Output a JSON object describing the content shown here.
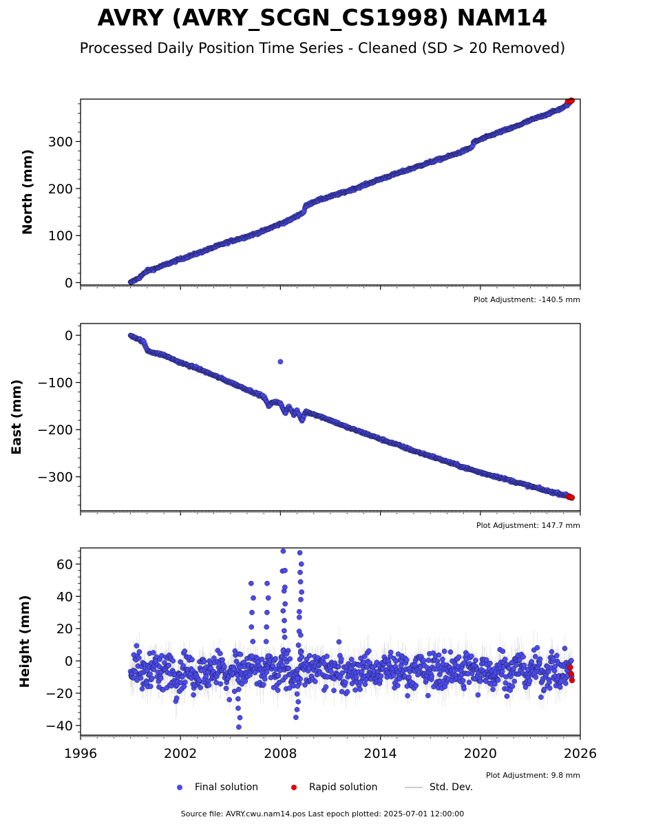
{
  "title": "AVRY (AVRY_SCGN_CS1998) NAM14",
  "subtitle": "Processed Daily Position Time Series - Cleaned (SD > 20 Removed)",
  "legend": {
    "final": "Final solution",
    "rapid": "Rapid solution",
    "std": "Std. Dev."
  },
  "footer": "Source file: AVRY.cwu.nam14.pos  Last epoch plotted: 2025-07-01 12:00:00",
  "colors": {
    "final": "#4b4bf0",
    "rapid": "#e00000",
    "std": "#cccccc",
    "edge": "#1a1a40"
  },
  "chart_data": [
    {
      "type": "scatter",
      "ylabel": "North (mm)",
      "adjustment": "Plot Adjustment: -140.5 mm",
      "xlim": [
        1996,
        2026
      ],
      "ylim": [
        -5,
        390
      ],
      "yticks": [
        0,
        100,
        200,
        300
      ],
      "ytick_labels": [
        "0",
        "100",
        "200",
        "300"
      ],
      "x": [
        1999.0,
        1999.5,
        2000.0,
        2000.5,
        2001.0,
        2002.0,
        2003.0,
        2004.0,
        2005.0,
        2006.0,
        2007.0,
        2007.5,
        2008.0,
        2008.5,
        2009.0,
        2009.4,
        2009.5,
        2010.0,
        2011.0,
        2012.0,
        2013.0,
        2014.0,
        2015.0,
        2016.0,
        2017.0,
        2018.0,
        2019.0,
        2019.5,
        2019.6,
        2020.0,
        2021.0,
        2022.0,
        2023.0,
        2024.0,
        2025.0,
        2025.5
      ],
      "y": [
        0,
        10,
        25,
        30,
        37,
        50,
        62,
        75,
        88,
        98,
        110,
        118,
        125,
        132,
        142,
        150,
        162,
        172,
        183,
        194,
        207,
        220,
        232,
        244,
        256,
        267,
        280,
        288,
        298,
        304,
        318,
        330,
        345,
        358,
        372,
        387
      ],
      "rapid_x": [
        2025.25,
        2025.4,
        2025.5
      ],
      "rapid_y": [
        385,
        386,
        387
      ]
    },
    {
      "type": "scatter",
      "ylabel": "East (mm)",
      "adjustment": "Plot Adjustment: 147.7 mm",
      "xlim": [
        1996,
        2026
      ],
      "ylim": [
        -372,
        25
      ],
      "yticks": [
        0,
        -100,
        -200,
        -300
      ],
      "ytick_labels": [
        "0",
        "−100",
        "−200",
        "−300"
      ],
      "x": [
        1999.0,
        1999.3,
        1999.6,
        1999.8,
        2000.0,
        2000.5,
        2001.0,
        2002.0,
        2003.0,
        2004.0,
        2005.0,
        2006.0,
        2007.0,
        2007.3,
        2007.6,
        2008.0,
        2008.3,
        2008.5,
        2008.8,
        2009.0,
        2009.3,
        2009.5,
        2010.0,
        2011.0,
        2012.0,
        2013.0,
        2014.0,
        2015.0,
        2016.0,
        2017.0,
        2018.0,
        2019.0,
        2020.0,
        2021.0,
        2022.0,
        2023.0,
        2024.0,
        2025.0,
        2025.5
      ],
      "y": [
        0,
        -5,
        -10,
        -15,
        -32,
        -38,
        -42,
        -58,
        -70,
        -85,
        -100,
        -115,
        -130,
        -150,
        -140,
        -145,
        -165,
        -150,
        -168,
        -160,
        -182,
        -162,
        -167,
        -180,
        -195,
        -207,
        -220,
        -232,
        -245,
        -256,
        -268,
        -280,
        -291,
        -300,
        -310,
        -320,
        -330,
        -338,
        -344
      ],
      "outlier_x": [
        2008.0
      ],
      "outlier_y": [
        -56
      ],
      "rapid_x": [
        2025.3,
        2025.4,
        2025.5
      ],
      "rapid_y": [
        -342,
        -343,
        -344
      ]
    },
    {
      "type": "scatter",
      "ylabel": "Height (mm)",
      "adjustment": "Plot Adjustment: 9.8 mm",
      "xlim": [
        1996,
        2026
      ],
      "ylim": [
        -46,
        70
      ],
      "yticks": [
        60,
        40,
        20,
        0,
        -20,
        -40
      ],
      "ytick_labels": [
        "60",
        "40",
        "20",
        "0",
        "−20",
        "−40"
      ],
      "xticks": [
        1996,
        2002,
        2008,
        2014,
        2020,
        2026
      ],
      "xtick_labels": [
        "1996",
        "2002",
        "2008",
        "2014",
        "2020",
        "2026"
      ],
      "baseline": -6,
      "spread": 14,
      "x_range": [
        1999.0,
        2025.5
      ],
      "spikes": [
        {
          "x": 2006.3,
          "y": 48
        },
        {
          "x": 2007.2,
          "y": 48
        },
        {
          "x": 2008.2,
          "y": 68
        },
        {
          "x": 2008.3,
          "y": 56
        },
        {
          "x": 2009.2,
          "y": 67
        },
        {
          "x": 2009.2,
          "y": 60
        },
        {
          "x": 2005.5,
          "y": -41
        },
        {
          "x": 2009.0,
          "y": -35
        }
      ],
      "rapid_x": [
        2025.4,
        2025.45,
        2025.5
      ],
      "rapid_y": [
        -4,
        -8,
        -12
      ]
    }
  ]
}
